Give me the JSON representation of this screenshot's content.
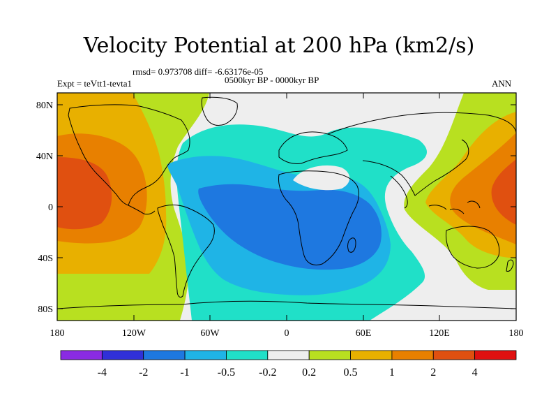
{
  "title": "Velocity Potential at 200 hPa (km2/s)",
  "stats": "rmsd= 0.973708 diff= -6.63176e-05",
  "experiment": "Expt = teVtt1-tevta1",
  "period": "0500kyr BP - 0000kyr BP",
  "season": "ANN",
  "lat_ticks": [
    "80N",
    "40N",
    "0",
    "40S",
    "80S"
  ],
  "lon_ticks": [
    "180",
    "120W",
    "60W",
    "0",
    "60E",
    "120E",
    "180"
  ],
  "colorbar": {
    "labels": [
      "-4",
      "-2",
      "-1",
      "-0.5",
      "-0.2",
      "0.2",
      "0.5",
      "1",
      "2",
      "4"
    ],
    "colors": [
      "#8a2be2",
      "#3030d8",
      "#1e78e0",
      "#1fb4e6",
      "#20e0c8",
      "#eeeeee",
      "#b8e020",
      "#e8b000",
      "#e88000",
      "#e05010",
      "#e01010"
    ]
  },
  "palette": {
    "land": "#000000",
    "neutral": "#eeeeee",
    "neg1": "#20e0c8",
    "neg2": "#1fb4e6",
    "neg3": "#1e78e0",
    "pos1": "#b8e020",
    "pos2": "#e8b000",
    "pos3": "#e88000",
    "pos4": "#e05010"
  }
}
